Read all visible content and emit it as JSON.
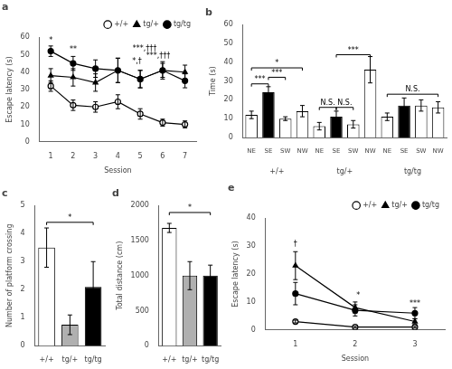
{
  "chart_data": [
    {
      "type": "line",
      "title": "a",
      "x": [
        1,
        2,
        3,
        4,
        5,
        6,
        7
      ],
      "xlabel": "Session",
      "ylabel": "Escape latency (s)",
      "xlim": [
        0.5,
        7.5
      ],
      "xticks": [
        1,
        2,
        3,
        4,
        5,
        6,
        7
      ],
      "ylim": [
        0,
        60
      ],
      "yticks": [
        0,
        10,
        20,
        30,
        40,
        50,
        60
      ],
      "grid": false,
      "legend": "upper right",
      "series": [
        {
          "name": "+/+",
          "color": "black",
          "marker": "open_circle",
          "values": [
            32,
            21,
            20,
            23,
            16,
            11,
            10
          ],
          "errors": [
            3,
            3,
            3,
            4,
            3,
            2,
            2
          ]
        },
        {
          "name": "tg/+",
          "color": "black",
          "marker": "triangle",
          "values": [
            38,
            37,
            34,
            41,
            36,
            41,
            40
          ],
          "errors": [
            4,
            5,
            5,
            7,
            5,
            4,
            4
          ]
        },
        {
          "name": "tg/tg",
          "color": "black",
          "marker": "circle",
          "values": [
            52,
            45,
            42,
            41,
            36,
            41,
            35
          ],
          "errors": [
            3,
            4,
            5,
            7,
            5,
            5,
            4
          ]
        }
      ],
      "annotations": [
        {
          "text": "*",
          "x": 1.0,
          "y": 56
        },
        {
          "text": "**",
          "x": 2.0,
          "y": 51
        },
        {
          "text": "*,†",
          "x": 4.85,
          "y": 44
        },
        {
          "text": "***,†††",
          "x": 5.2,
          "y": 51.5
        },
        {
          "text": "***,†††",
          "x": 5.8,
          "y": 47
        }
      ]
    },
    {
      "type": "bar",
      "title": "b",
      "categories": [
        "NE",
        "SE",
        "SW",
        "NW",
        "NE",
        "SE",
        "SW",
        "NW",
        "NE",
        "SE",
        "SW",
        "NW"
      ],
      "groups": [
        "+/+",
        "tg/+",
        "tg/tg"
      ],
      "values": [
        12,
        24,
        10,
        14,
        6,
        11,
        7,
        36,
        11,
        17,
        17,
        16
      ],
      "errors": [
        2,
        3,
        1,
        3,
        2,
        3,
        2,
        7,
        2,
        4,
        3,
        3
      ],
      "colors": [
        "white",
        "black",
        "white",
        "white",
        "white",
        "black",
        "white",
        "white",
        "white",
        "black",
        "white",
        "white"
      ],
      "ylabel": "Time (s)",
      "ylim": [
        0,
        60
      ],
      "yticks": [
        0,
        10,
        20,
        30,
        40,
        50,
        60
      ],
      "grid": false,
      "brackets": [
        {
          "group": "+/+",
          "from": "NE",
          "to": "SE",
          "y": 28.5,
          "text": "***"
        },
        {
          "group": "+/+",
          "from": "SE",
          "to": "SW",
          "y": 32,
          "text": "***"
        },
        {
          "group": "+/+",
          "from": "NE",
          "to": "NW",
          "y": 37,
          "text": "*"
        },
        {
          "group": "tg/+",
          "from": "NE",
          "to": "SE",
          "y": 16,
          "text": "N.S."
        },
        {
          "group": "tg/+",
          "from": "SE",
          "to": "SW",
          "y": 16,
          "text": "N.S."
        },
        {
          "group": "tg/+",
          "from": "SE",
          "to": "NW",
          "y": 44,
          "text": "***"
        },
        {
          "group": "tg/tg",
          "from": "NE",
          "to": "NW",
          "y": 23,
          "text": "N.S."
        }
      ]
    },
    {
      "type": "bar",
      "title": "c",
      "categories": [
        "+/+",
        "tg/+",
        "tg/tg"
      ],
      "values": [
        3.5,
        0.75,
        2.1
      ],
      "errors": [
        0.7,
        0.35,
        0.9
      ],
      "colors": [
        "white",
        "#b0b0b0",
        "black"
      ],
      "ylabel": "Number of platform crossing",
      "ylim": [
        0,
        5
      ],
      "yticks": [
        0,
        1,
        2,
        3,
        4,
        5
      ],
      "grid": false,
      "brackets": [
        {
          "from": "+/+",
          "to": "tg/tg",
          "y": 4.4,
          "text": "*"
        }
      ]
    },
    {
      "type": "bar",
      "title": "d",
      "categories": [
        "+/+",
        "tg/+",
        "tg/tg"
      ],
      "values": [
        1680,
        1000,
        1000
      ],
      "errors": [
        65,
        200,
        150
      ],
      "colors": [
        "white",
        "#b0b0b0",
        "black"
      ],
      "ylabel": "Total distance (cm)",
      "ylim": [
        0,
        2000
      ],
      "yticks": [
        0,
        500,
        1000,
        1500,
        2000
      ],
      "grid": false,
      "brackets": [
        {
          "from": "+/+",
          "to": "tg/tg",
          "y": 1900,
          "text": "*"
        }
      ]
    },
    {
      "type": "line",
      "title": "e",
      "x": [
        1,
        2,
        3
      ],
      "xlabel": "Session",
      "ylabel": "Escape latency (s)",
      "xlim": [
        0.5,
        3.5
      ],
      "xticks": [
        1,
        2,
        3
      ],
      "ylim": [
        0,
        40
      ],
      "yticks": [
        0,
        10,
        20,
        30,
        40
      ],
      "grid": false,
      "legend": "upper right",
      "series": [
        {
          "name": "+/+",
          "color": "black",
          "marker": "open_circle",
          "values": [
            3,
            1,
            1
          ],
          "errors": [
            0.5,
            0.3,
            0.3
          ]
        },
        {
          "name": "tg/+",
          "color": "black",
          "marker": "triangle",
          "values": [
            23,
            8,
            3
          ],
          "errors": [
            5,
            2,
            1
          ]
        },
        {
          "name": "tg/tg",
          "color": "black",
          "marker": "circle",
          "values": [
            13,
            7,
            6
          ],
          "errors": [
            4,
            2,
            2
          ]
        }
      ],
      "annotations": [
        {
          "text": "†",
          "x": 1.0,
          "y": 29.5
        },
        {
          "text": "*",
          "x": 2.05,
          "y": 11
        },
        {
          "text": "***",
          "x": 3.0,
          "y": 8
        }
      ]
    }
  ]
}
